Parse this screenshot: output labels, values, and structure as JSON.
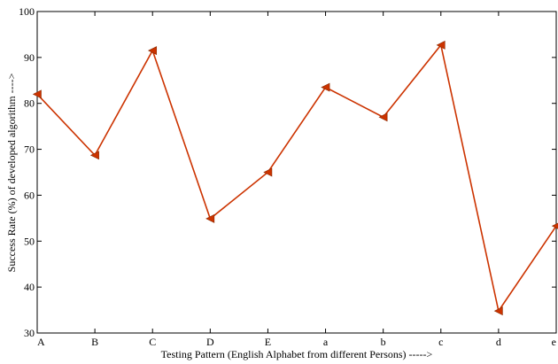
{
  "chart_data": {
    "type": "line",
    "categories": [
      "A",
      "B",
      "C",
      "D",
      "E",
      "a",
      "b",
      "c",
      "d",
      "e"
    ],
    "series": [
      {
        "values": [
          82,
          68.7,
          91.5,
          54.9,
          65,
          83.5,
          77,
          92.7,
          34.8,
          53.3
        ],
        "color": "#cc3300",
        "marker": "left-triangle"
      }
    ],
    "ylim": [
      30,
      100
    ],
    "yticks": [
      30,
      40,
      50,
      60,
      70,
      80,
      90,
      100
    ],
    "xlabel": "Testing Pattern (English Alphabet from different Persons) ----->",
    "ylabel": "Success Rate (%) of developed algorithm ---->",
    "grid": false,
    "legend": "none"
  }
}
